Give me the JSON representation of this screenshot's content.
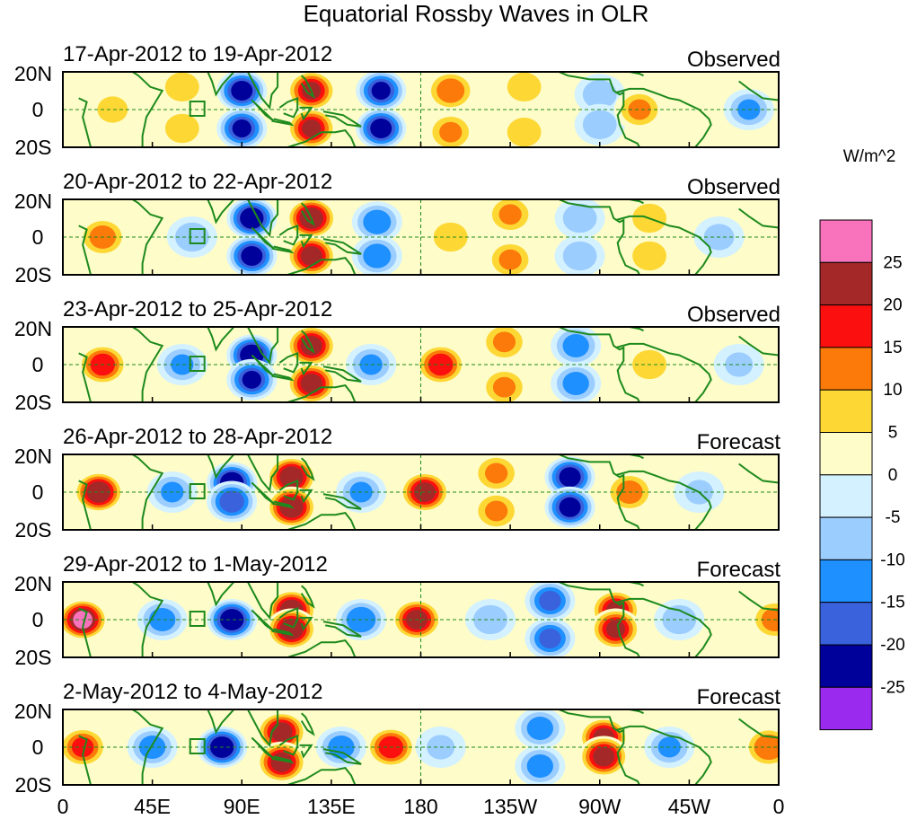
{
  "chart_data": {
    "type": "heatmap",
    "title": "Equatorial Rossby Waves in OLR",
    "units": "W/m^2",
    "x_ticks": [
      "0",
      "45E",
      "90E",
      "135E",
      "180",
      "135W",
      "90W",
      "45W",
      "0"
    ],
    "x_range": [
      0,
      360
    ],
    "y_ticks": [
      "20N",
      "0",
      "20S"
    ],
    "y_range": [
      -20,
      20
    ],
    "levels": [
      -25,
      -20,
      -15,
      -10,
      -5,
      0,
      5,
      10,
      15,
      20,
      25
    ],
    "colorbar_labels": [
      "25",
      "20",
      "15",
      "10",
      "5",
      "0",
      "-5",
      "-10",
      "-15",
      "-20",
      "-25"
    ],
    "colors": [
      "#9a2aee",
      "#00009a",
      "#3a62dc",
      "#1e90ff",
      "#9ccdff",
      "#d4f1ff",
      "#fefcc8",
      "#fdd835",
      "#fb7a0a",
      "#fb0f0f",
      "#a52828",
      "#f872bc"
    ],
    "coast_color": "#1d8a1d",
    "panels": [
      {
        "dates": "17-Apr-2012 to 19-Apr-2012",
        "label": "Observed",
        "anomalies": [
          {
            "lon": 25,
            "lat": 0,
            "value": 6
          },
          {
            "lon": 60,
            "lat": 12,
            "value": 8
          },
          {
            "lon": 60,
            "lat": -10,
            "value": 8
          },
          {
            "lon": 90,
            "lat": 10,
            "value": -22
          },
          {
            "lon": 90,
            "lat": -10,
            "value": -20
          },
          {
            "lon": 125,
            "lat": 10,
            "value": 20
          },
          {
            "lon": 125,
            "lat": -10,
            "value": 20
          },
          {
            "lon": 160,
            "lat": 10,
            "value": -20
          },
          {
            "lon": 160,
            "lat": -10,
            "value": -22
          },
          {
            "lon": 195,
            "lat": 10,
            "value": 13
          },
          {
            "lon": 195,
            "lat": -12,
            "value": 10
          },
          {
            "lon": 232,
            "lat": 12,
            "value": 8
          },
          {
            "lon": 232,
            "lat": -12,
            "value": 8
          },
          {
            "lon": 270,
            "lat": 8,
            "value": -8
          },
          {
            "lon": 270,
            "lat": -8,
            "value": -8
          },
          {
            "lon": 290,
            "lat": 0,
            "value": 10
          },
          {
            "lon": 345,
            "lat": 0,
            "value": -10
          }
        ]
      },
      {
        "dates": "20-Apr-2012 to 22-Apr-2012",
        "label": "Observed",
        "anomalies": [
          {
            "lon": 20,
            "lat": 0,
            "value": 12
          },
          {
            "lon": 65,
            "lat": 0,
            "value": -8
          },
          {
            "lon": 95,
            "lat": 10,
            "value": -24
          },
          {
            "lon": 95,
            "lat": -10,
            "value": -22
          },
          {
            "lon": 125,
            "lat": 10,
            "value": 24
          },
          {
            "lon": 125,
            "lat": -10,
            "value": 22
          },
          {
            "lon": 158,
            "lat": 8,
            "value": -13
          },
          {
            "lon": 158,
            "lat": -10,
            "value": -13
          },
          {
            "lon": 195,
            "lat": 0,
            "value": 8
          },
          {
            "lon": 225,
            "lat": 12,
            "value": 10
          },
          {
            "lon": 225,
            "lat": -12,
            "value": 10
          },
          {
            "lon": 260,
            "lat": 10,
            "value": -8
          },
          {
            "lon": 260,
            "lat": -10,
            "value": -8
          },
          {
            "lon": 295,
            "lat": 10,
            "value": 8
          },
          {
            "lon": 295,
            "lat": -10,
            "value": 8
          },
          {
            "lon": 330,
            "lat": 0,
            "value": -6
          }
        ]
      },
      {
        "dates": "23-Apr-2012 to 25-Apr-2012",
        "label": "Observed",
        "anomalies": [
          {
            "lon": 20,
            "lat": 0,
            "value": 18
          },
          {
            "lon": 60,
            "lat": 0,
            "value": -10
          },
          {
            "lon": 95,
            "lat": 5,
            "value": -24
          },
          {
            "lon": 95,
            "lat": -8,
            "value": -20
          },
          {
            "lon": 125,
            "lat": 10,
            "value": 22
          },
          {
            "lon": 125,
            "lat": -10,
            "value": 22
          },
          {
            "lon": 155,
            "lat": 0,
            "value": -10
          },
          {
            "lon": 190,
            "lat": 0,
            "value": 18
          },
          {
            "lon": 222,
            "lat": 12,
            "value": 10
          },
          {
            "lon": 222,
            "lat": -12,
            "value": 10
          },
          {
            "lon": 258,
            "lat": 10,
            "value": -12
          },
          {
            "lon": 258,
            "lat": -10,
            "value": -12
          },
          {
            "lon": 295,
            "lat": 0,
            "value": 8
          },
          {
            "lon": 340,
            "lat": 0,
            "value": -5
          }
        ]
      },
      {
        "dates": "26-Apr-2012 to 28-Apr-2012",
        "label": "Forecast",
        "anomalies": [
          {
            "lon": 18,
            "lat": 0,
            "value": 24
          },
          {
            "lon": 55,
            "lat": 0,
            "value": -10
          },
          {
            "lon": 85,
            "lat": 5,
            "value": -24
          },
          {
            "lon": 85,
            "lat": -5,
            "value": -18
          },
          {
            "lon": 115,
            "lat": 8,
            "value": 24
          },
          {
            "lon": 115,
            "lat": -8,
            "value": 24
          },
          {
            "lon": 150,
            "lat": 0,
            "value": -10
          },
          {
            "lon": 182,
            "lat": 0,
            "value": 22
          },
          {
            "lon": 218,
            "lat": 10,
            "value": 10
          },
          {
            "lon": 218,
            "lat": -10,
            "value": 10
          },
          {
            "lon": 255,
            "lat": 8,
            "value": -22
          },
          {
            "lon": 255,
            "lat": -8,
            "value": -22
          },
          {
            "lon": 285,
            "lat": 0,
            "value": 12
          },
          {
            "lon": 320,
            "lat": 0,
            "value": -5
          }
        ]
      },
      {
        "dates": "29-Apr-2012 to 1-May-2012",
        "label": "Forecast",
        "anomalies": [
          {
            "lon": 10,
            "lat": 0,
            "value": 26
          },
          {
            "lon": 50,
            "lat": 0,
            "value": -12
          },
          {
            "lon": 85,
            "lat": 0,
            "value": -24
          },
          {
            "lon": 115,
            "lat": 5,
            "value": 24
          },
          {
            "lon": 115,
            "lat": -5,
            "value": 24
          },
          {
            "lon": 150,
            "lat": 0,
            "value": -14
          },
          {
            "lon": 178,
            "lat": 0,
            "value": 22
          },
          {
            "lon": 215,
            "lat": 0,
            "value": -8
          },
          {
            "lon": 245,
            "lat": 10,
            "value": -16
          },
          {
            "lon": 245,
            "lat": -10,
            "value": -16
          },
          {
            "lon": 278,
            "lat": 5,
            "value": 20
          },
          {
            "lon": 278,
            "lat": -5,
            "value": 20
          },
          {
            "lon": 310,
            "lat": 0,
            "value": -8
          },
          {
            "lon": 358,
            "lat": 0,
            "value": 12
          }
        ]
      },
      {
        "dates": "2-May-2012 to 4-May-2012",
        "label": "Forecast",
        "anomalies": [
          {
            "lon": 10,
            "lat": 0,
            "value": 16
          },
          {
            "lon": 45,
            "lat": 0,
            "value": -12
          },
          {
            "lon": 80,
            "lat": 0,
            "value": -24
          },
          {
            "lon": 110,
            "lat": 8,
            "value": 22
          },
          {
            "lon": 110,
            "lat": -8,
            "value": 22
          },
          {
            "lon": 140,
            "lat": 0,
            "value": -12
          },
          {
            "lon": 165,
            "lat": 0,
            "value": 18
          },
          {
            "lon": 190,
            "lat": 0,
            "value": -5
          },
          {
            "lon": 240,
            "lat": 10,
            "value": -12
          },
          {
            "lon": 240,
            "lat": -10,
            "value": -12
          },
          {
            "lon": 272,
            "lat": 5,
            "value": 22
          },
          {
            "lon": 272,
            "lat": -5,
            "value": 22
          },
          {
            "lon": 305,
            "lat": 0,
            "value": -10
          },
          {
            "lon": 355,
            "lat": 0,
            "value": 14
          }
        ]
      }
    ]
  }
}
